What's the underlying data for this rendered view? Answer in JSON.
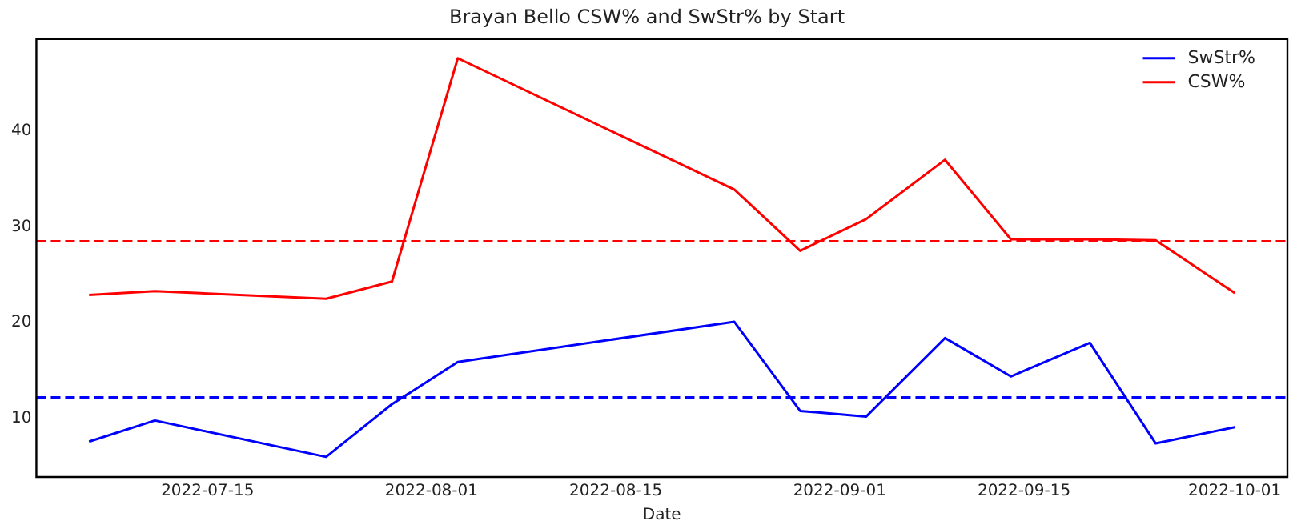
{
  "chart_data": {
    "type": "line",
    "title": "Brayan Bello CSW% and SwStr% by Start",
    "xlabel": "Date",
    "x": [
      "2022-07-06",
      "2022-07-11",
      "2022-07-24",
      "2022-07-29",
      "2022-08-03",
      "2022-08-24",
      "2022-08-29",
      "2022-09-03",
      "2022-09-09",
      "2022-09-14",
      "2022-09-20",
      "2022-09-25",
      "2022-10-01"
    ],
    "series": [
      {
        "name": "SwStr%",
        "color": "#0000ff",
        "values": [
          7.6,
          9.8,
          6.0,
          11.5,
          15.9,
          20.1,
          10.8,
          10.2,
          18.4,
          14.4,
          17.9,
          7.4,
          9.1
        ]
      },
      {
        "name": "CSW%",
        "color": "#ff0000",
        "values": [
          22.9,
          23.3,
          22.5,
          24.3,
          47.6,
          33.9,
          27.5,
          30.8,
          37.0,
          28.7,
          28.7,
          28.6,
          23.1
        ]
      }
    ],
    "ref_lines": [
      {
        "axis": "y",
        "value": 12.2,
        "color": "#0000ff",
        "line_style": "dashed"
      },
      {
        "axis": "y",
        "value": 28.5,
        "color": "#ff0000",
        "line_style": "dashed"
      }
    ],
    "xlim": [
      "2022-07-02",
      "2022-10-05"
    ],
    "xticks": [
      "2022-07-15",
      "2022-08-01",
      "2022-08-15",
      "2022-09-01",
      "2022-09-15",
      "2022-10-01"
    ],
    "ylim": [
      3.9,
      49.6
    ],
    "yticks": [
      10,
      20,
      30,
      40
    ],
    "grid": false,
    "legend": "top right",
    "marker": "none",
    "line_style": "solid"
  }
}
